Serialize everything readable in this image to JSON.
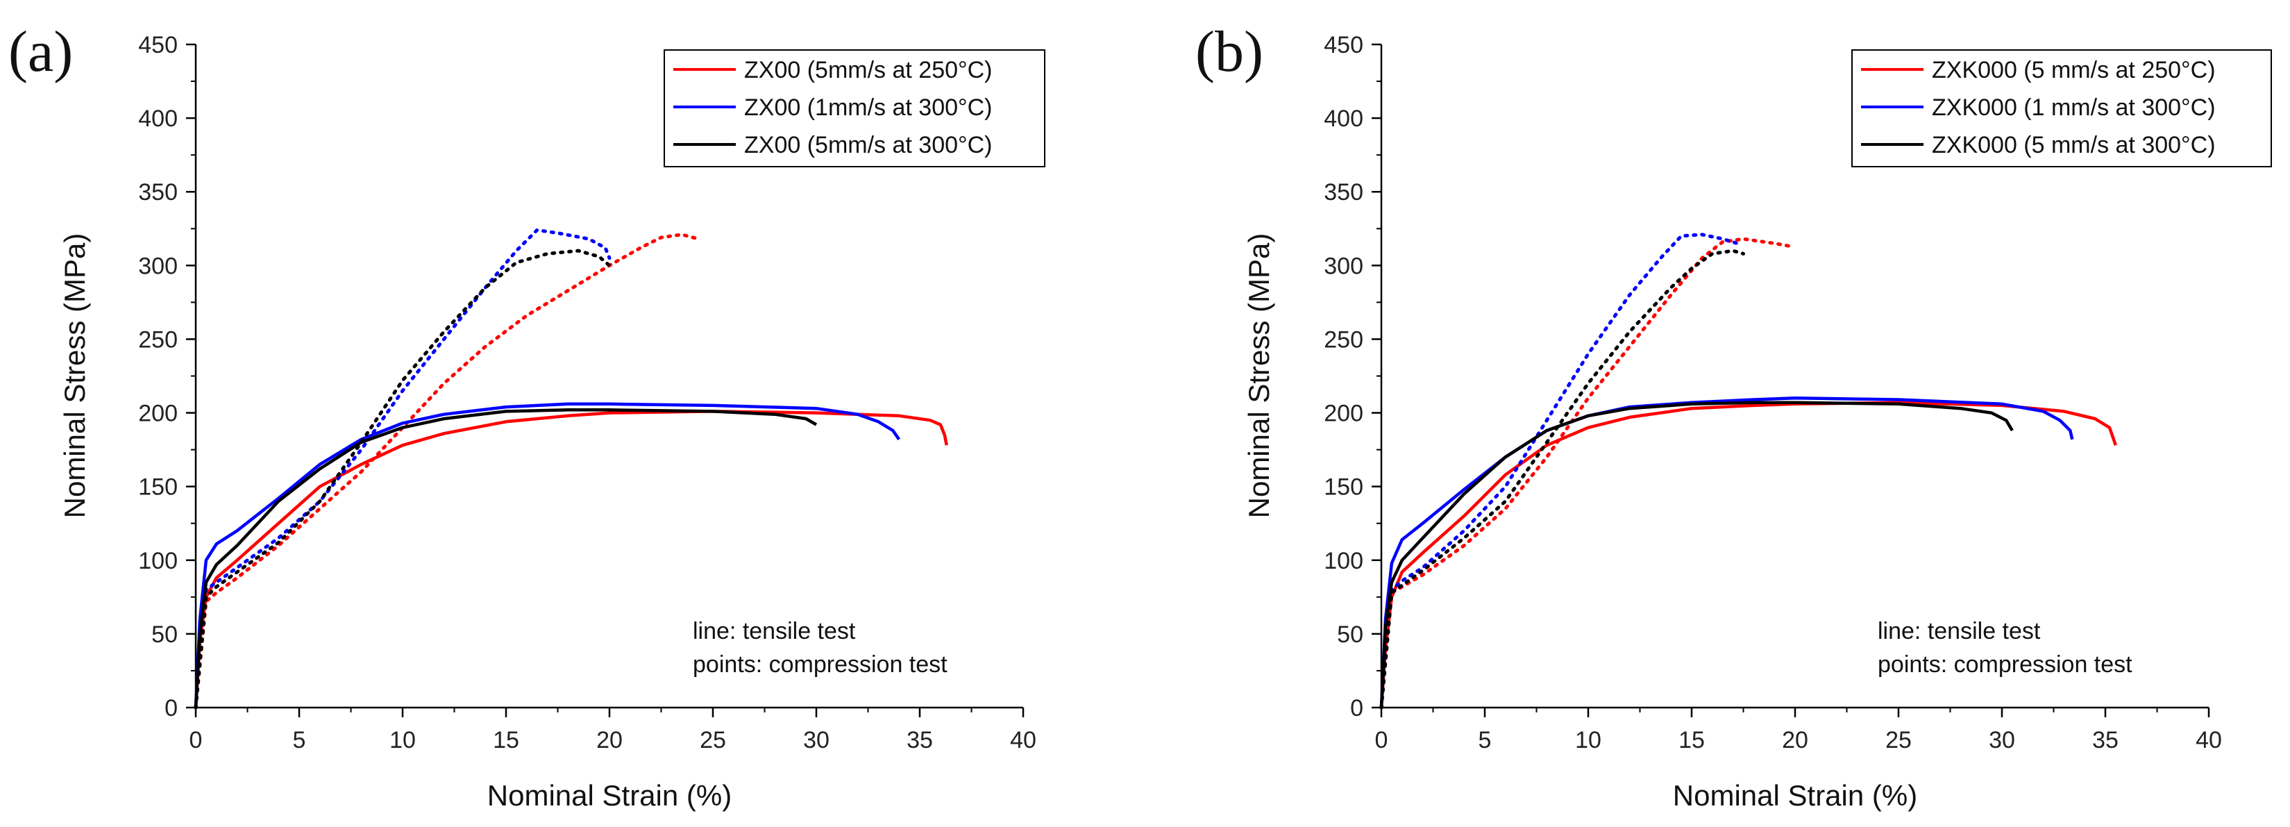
{
  "chart_data": [
    {
      "type": "line",
      "panel_label": "(a)",
      "xlabel": "Nominal Strain (%)",
      "ylabel": "Nominal Stress (MPa)",
      "xlim": [
        0,
        40
      ],
      "ylim": [
        0,
        450
      ],
      "xticks": [
        "0",
        "5",
        "10",
        "15",
        "20",
        "25",
        "30",
        "35",
        "40"
      ],
      "yticks": [
        "0",
        "50",
        "100",
        "150",
        "200",
        "250",
        "300",
        "350",
        "400",
        "450"
      ],
      "legend_position": "top-right",
      "annotation": [
        "line: tensile test",
        "points: compression test"
      ],
      "series": [
        {
          "name": "ZX00 (5mm/s at 250°C)",
          "color": "#ff0000",
          "tensile": [
            [
              0,
              0
            ],
            [
              0.2,
              45
            ],
            [
              0.5,
              75
            ],
            [
              1,
              88
            ],
            [
              2,
              100
            ],
            [
              4,
              125
            ],
            [
              6,
              150
            ],
            [
              8,
              165
            ],
            [
              10,
              178
            ],
            [
              12,
              186
            ],
            [
              15,
              194
            ],
            [
              18,
              198
            ],
            [
              20,
              200
            ],
            [
              25,
              201
            ],
            [
              30,
              200
            ],
            [
              34,
              198
            ],
            [
              35.5,
              195
            ],
            [
              36,
              192
            ],
            [
              36.2,
              185
            ],
            [
              36.3,
              178
            ]
          ],
          "compression": [
            [
              0,
              0
            ],
            [
              0.5,
              72
            ],
            [
              1,
              78
            ],
            [
              2,
              88
            ],
            [
              4,
              110
            ],
            [
              6,
              135
            ],
            [
              8,
              160
            ],
            [
              10,
              190
            ],
            [
              12,
              220
            ],
            [
              14,
              245
            ],
            [
              16,
              266
            ],
            [
              18,
              283
            ],
            [
              20,
              300
            ],
            [
              21.5,
              312
            ],
            [
              22.5,
              319
            ],
            [
              23.5,
              321
            ],
            [
              24.3,
              318
            ]
          ]
        },
        {
          "name": "ZX00 (1mm/s at 300°C)",
          "color": "#0000ff",
          "tensile": [
            [
              0,
              0
            ],
            [
              0.2,
              60
            ],
            [
              0.5,
              100
            ],
            [
              1,
              111
            ],
            [
              2,
              120
            ],
            [
              4,
              142
            ],
            [
              6,
              165
            ],
            [
              8,
              182
            ],
            [
              10,
              193
            ],
            [
              12,
              199
            ],
            [
              15,
              204
            ],
            [
              18,
              206
            ],
            [
              20,
              206
            ],
            [
              25,
              205
            ],
            [
              30,
              203
            ],
            [
              32,
              199
            ],
            [
              33,
              194
            ],
            [
              33.7,
              188
            ],
            [
              34,
              182
            ]
          ],
          "compression": [
            [
              0,
              0
            ],
            [
              0.5,
              80
            ],
            [
              1,
              85
            ],
            [
              2,
              95
            ],
            [
              4,
              115
            ],
            [
              6,
              140
            ],
            [
              8,
              175
            ],
            [
              10,
              215
            ],
            [
              12,
              250
            ],
            [
              14,
              285
            ],
            [
              15.5,
              310
            ],
            [
              16.5,
              324
            ],
            [
              17.5,
              322
            ],
            [
              19,
              318
            ],
            [
              19.8,
              312
            ],
            [
              20,
              305
            ]
          ]
        },
        {
          "name": "ZX00 (5mm/s at 300°C)",
          "color": "#000000",
          "tensile": [
            [
              0,
              0
            ],
            [
              0.2,
              50
            ],
            [
              0.5,
              85
            ],
            [
              1,
              97
            ],
            [
              2,
              110
            ],
            [
              4,
              140
            ],
            [
              6,
              162
            ],
            [
              8,
              180
            ],
            [
              10,
              190
            ],
            [
              12,
              196
            ],
            [
              15,
              201
            ],
            [
              18,
              202
            ],
            [
              20,
              202
            ],
            [
              25,
              201
            ],
            [
              28,
              199
            ],
            [
              29.5,
              196
            ],
            [
              30,
              192
            ]
          ],
          "compression": [
            [
              0,
              0
            ],
            [
              0.5,
              75
            ],
            [
              1,
              82
            ],
            [
              2,
              92
            ],
            [
              4,
              112
            ],
            [
              6,
              140
            ],
            [
              8,
              180
            ],
            [
              10,
              222
            ],
            [
              12,
              255
            ],
            [
              14,
              285
            ],
            [
              15.5,
              302
            ],
            [
              17,
              308
            ],
            [
              18.5,
              310
            ],
            [
              19.5,
              306
            ],
            [
              20,
              300
            ]
          ]
        }
      ]
    },
    {
      "type": "line",
      "panel_label": "(b)",
      "xlabel": "Nominal Strain (%)",
      "ylabel": "Nominal Stress (MPa)",
      "xlim": [
        0,
        40
      ],
      "ylim": [
        0,
        450
      ],
      "xticks": [
        "0",
        "5",
        "10",
        "15",
        "20",
        "25",
        "30",
        "35",
        "40"
      ],
      "yticks": [
        "0",
        "50",
        "100",
        "150",
        "200",
        "250",
        "300",
        "350",
        "400",
        "450"
      ],
      "legend_position": "top-right",
      "annotation": [
        "line: tensile test",
        "points: compression test"
      ],
      "series": [
        {
          "name": "ZXK000 (5 mm/s at 250°C)",
          "color": "#ff0000",
          "tensile": [
            [
              0,
              0
            ],
            [
              0.2,
              40
            ],
            [
              0.5,
              75
            ],
            [
              1,
              92
            ],
            [
              2,
              105
            ],
            [
              4,
              130
            ],
            [
              6,
              158
            ],
            [
              8,
              178
            ],
            [
              10,
              190
            ],
            [
              12,
              197
            ],
            [
              15,
              203
            ],
            [
              18,
              205
            ],
            [
              20,
              206
            ],
            [
              25,
              207
            ],
            [
              30,
              205
            ],
            [
              33,
              201
            ],
            [
              34.5,
              196
            ],
            [
              35.2,
              190
            ],
            [
              35.5,
              178
            ]
          ],
          "compression": [
            [
              0,
              0
            ],
            [
              0.5,
              78
            ],
            [
              1,
              82
            ],
            [
              2,
              90
            ],
            [
              4,
              110
            ],
            [
              6,
              135
            ],
            [
              8,
              170
            ],
            [
              10,
              210
            ],
            [
              12,
              245
            ],
            [
              14,
              280
            ],
            [
              15.5,
              305
            ],
            [
              16.5,
              316
            ],
            [
              17.5,
              318
            ],
            [
              19,
              315
            ],
            [
              19.8,
              313
            ]
          ]
        },
        {
          "name": "ZXK000 (1 mm/s at 300°C)",
          "color": "#0000ff",
          "tensile": [
            [
              0,
              0
            ],
            [
              0.2,
              60
            ],
            [
              0.5,
              98
            ],
            [
              1,
              114
            ],
            [
              2,
              125
            ],
            [
              4,
              148
            ],
            [
              6,
              170
            ],
            [
              8,
              188
            ],
            [
              10,
              198
            ],
            [
              12,
              204
            ],
            [
              15,
              207
            ],
            [
              18,
              209
            ],
            [
              20,
              210
            ],
            [
              25,
              209
            ],
            [
              30,
              206
            ],
            [
              32,
              201
            ],
            [
              32.8,
              195
            ],
            [
              33.3,
              188
            ],
            [
              33.4,
              182
            ]
          ],
          "compression": [
            [
              0,
              0
            ],
            [
              0.5,
              80
            ],
            [
              1,
              86
            ],
            [
              2,
              95
            ],
            [
              4,
              120
            ],
            [
              6,
              150
            ],
            [
              8,
              195
            ],
            [
              10,
              240
            ],
            [
              12,
              280
            ],
            [
              13.5,
              305
            ],
            [
              14.5,
              320
            ],
            [
              15.5,
              321
            ],
            [
              16.5,
              318
            ],
            [
              17.2,
              315
            ]
          ]
        },
        {
          "name": "ZXK000 (5 mm/s at 300°C)",
          "color": "#000000",
          "tensile": [
            [
              0,
              0
            ],
            [
              0.2,
              55
            ],
            [
              0.5,
              85
            ],
            [
              1,
              100
            ],
            [
              2,
              115
            ],
            [
              4,
              145
            ],
            [
              6,
              170
            ],
            [
              8,
              188
            ],
            [
              10,
              198
            ],
            [
              12,
              203
            ],
            [
              15,
              206
            ],
            [
              18,
              207
            ],
            [
              20,
              207
            ],
            [
              25,
              206
            ],
            [
              28,
              203
            ],
            [
              29.5,
              200
            ],
            [
              30.2,
              195
            ],
            [
              30.5,
              188
            ]
          ],
          "compression": [
            [
              0,
              0
            ],
            [
              0.5,
              78
            ],
            [
              1,
              83
            ],
            [
              2,
              93
            ],
            [
              4,
              115
            ],
            [
              6,
              140
            ],
            [
              8,
              180
            ],
            [
              10,
              220
            ],
            [
              12,
              255
            ],
            [
              14,
              285
            ],
            [
              15,
              298
            ],
            [
              16,
              308
            ],
            [
              17,
              310
            ],
            [
              17.5,
              308
            ]
          ]
        }
      ]
    }
  ]
}
